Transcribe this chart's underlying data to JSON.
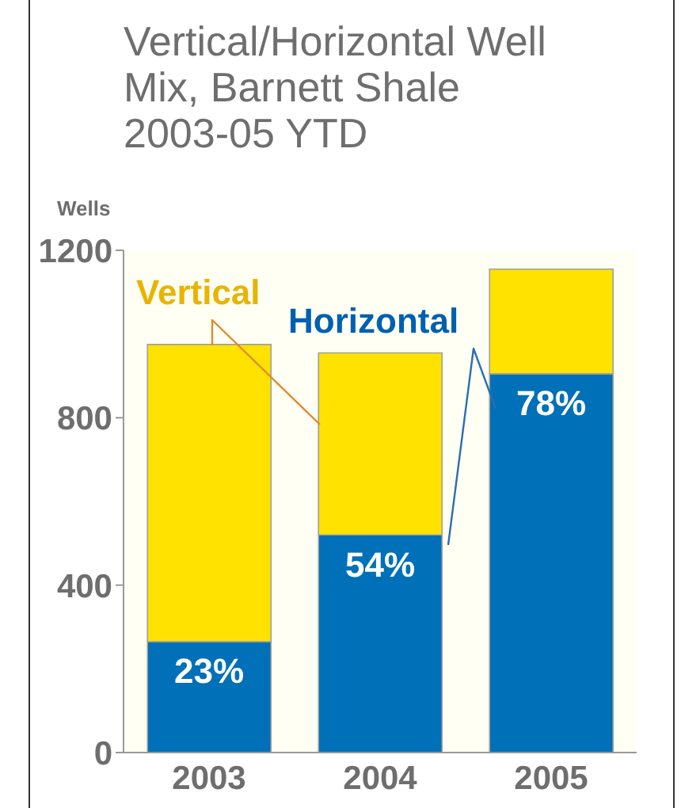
{
  "chart_data": {
    "type": "bar",
    "title": "Vertical/Horizontal Well Mix, Barnett Shale 2003-05 YTD",
    "ylabel": "Wells",
    "categories": [
      "2003",
      "2004",
      "2005"
    ],
    "series": [
      {
        "name": "Horizontal",
        "color": "#0070b8",
        "values": [
          265,
          520,
          905
        ]
      },
      {
        "name": "Vertical",
        "color": "#ffe200",
        "values": [
          710,
          435,
          250
        ]
      }
    ],
    "annotations": [
      {
        "text": "23%",
        "x": "2003",
        "y": 265
      },
      {
        "text": "54%",
        "x": "2004",
        "y": 520
      },
      {
        "text": "78%",
        "x": "2005",
        "y": 905
      }
    ],
    "stacked": true,
    "ylim": [
      0,
      1200
    ],
    "yticks": [
      0,
      400,
      800,
      1200
    ],
    "grid": false
  }
}
